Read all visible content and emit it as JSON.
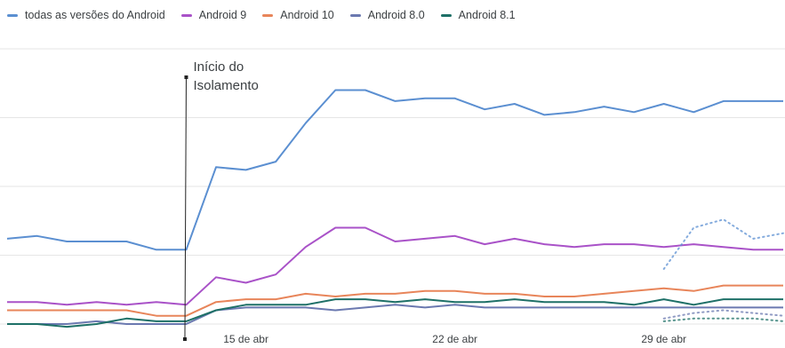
{
  "chart_data": {
    "type": "line",
    "title": "",
    "xlabel": "",
    "ylabel": "",
    "x_start": "2020-04-07",
    "x_end": "2020-05-03",
    "xlim": [
      "2020-04-07",
      "2020-05-03"
    ],
    "ylim": [
      0,
      100
    ],
    "grid": true,
    "legend_position": "top-left",
    "x_ticks": [
      {
        "date": "2020-04-15",
        "label": "15 de abr"
      },
      {
        "date": "2020-04-22",
        "label": "22 de abr"
      },
      {
        "date": "2020-04-29",
        "label": "29 de abr"
      }
    ],
    "x": [
      "2020-04-07",
      "2020-04-08",
      "2020-04-09",
      "2020-04-10",
      "2020-04-11",
      "2020-04-12",
      "2020-04-13",
      "2020-04-14",
      "2020-04-15",
      "2020-04-16",
      "2020-04-17",
      "2020-04-18",
      "2020-04-19",
      "2020-04-20",
      "2020-04-21",
      "2020-04-22",
      "2020-04-23",
      "2020-04-24",
      "2020-04-25",
      "2020-04-26",
      "2020-04-27",
      "2020-04-28",
      "2020-04-29",
      "2020-04-30",
      "2020-05-01",
      "2020-05-02",
      "2020-05-03"
    ],
    "series": [
      {
        "name": "todas as versões do Android",
        "color": "#5b8fd1",
        "values": [
          31,
          32,
          30,
          30,
          30,
          27,
          27,
          57,
          56,
          59,
          73,
          85,
          85,
          81,
          82,
          82,
          78,
          80,
          76,
          77,
          79,
          77,
          80,
          77,
          81,
          81,
          81
        ],
        "projection_x": [
          "2020-04-29",
          "2020-04-30",
          "2020-05-01",
          "2020-05-02",
          "2020-05-03"
        ],
        "projection_values": [
          20,
          35,
          38,
          31,
          33
        ]
      },
      {
        "name": "Android 9",
        "color": "#a952c8",
        "values": [
          8,
          8,
          7,
          8,
          7,
          8,
          7,
          17,
          15,
          18,
          28,
          35,
          35,
          30,
          31,
          32,
          29,
          31,
          29,
          28,
          29,
          29,
          28,
          29,
          28,
          27,
          27
        ]
      },
      {
        "name": "Android 10",
        "color": "#e8855a",
        "values": [
          5,
          5,
          5,
          5,
          5,
          3,
          3,
          8,
          9,
          9,
          11,
          10,
          11,
          11,
          12,
          12,
          11,
          11,
          10,
          10,
          11,
          12,
          13,
          12,
          14,
          14,
          14
        ]
      },
      {
        "name": "Android 8.0",
        "color": "#6b79b0",
        "values": [
          0,
          0,
          0,
          1,
          0,
          0,
          0,
          5,
          6,
          6,
          6,
          5,
          6,
          7,
          6,
          7,
          6,
          6,
          6,
          6,
          6,
          6,
          6,
          6,
          6,
          6,
          6
        ],
        "projection_x": [
          "2020-04-29",
          "2020-04-30",
          "2020-05-01",
          "2020-05-02",
          "2020-05-03"
        ],
        "projection_values": [
          2,
          4,
          5,
          4,
          3
        ]
      },
      {
        "name": "Android 8.1",
        "color": "#1e7067",
        "values": [
          0,
          0,
          -1,
          0,
          2,
          1,
          1,
          5,
          7,
          7,
          7,
          9,
          9,
          8,
          9,
          8,
          8,
          9,
          8,
          8,
          8,
          7,
          9,
          7,
          9,
          9,
          9
        ],
        "projection_x": [
          "2020-04-29",
          "2020-04-30",
          "2020-05-01",
          "2020-05-02",
          "2020-05-03"
        ],
        "projection_values": [
          1,
          2,
          2,
          2,
          1
        ]
      }
    ],
    "annotations": [
      {
        "text_lines": [
          "Início do",
          "Isolamento"
        ],
        "x": "2020-04-13"
      }
    ]
  }
}
